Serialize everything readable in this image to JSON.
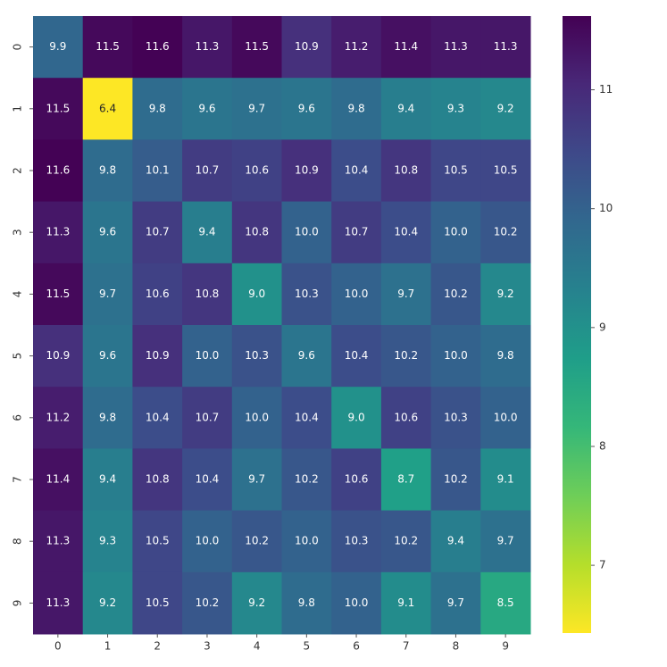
{
  "chart_data": {
    "type": "heatmap",
    "x_categories": [
      "0",
      "1",
      "2",
      "3",
      "4",
      "5",
      "6",
      "7",
      "8",
      "9"
    ],
    "y_categories": [
      "0",
      "1",
      "2",
      "3",
      "4",
      "5",
      "6",
      "7",
      "8",
      "9"
    ],
    "values": [
      [
        9.9,
        11.5,
        11.6,
        11.3,
        11.5,
        10.9,
        11.2,
        11.4,
        11.3,
        11.3
      ],
      [
        11.5,
        6.4,
        9.8,
        9.6,
        9.7,
        9.6,
        9.8,
        9.4,
        9.3,
        9.2
      ],
      [
        11.6,
        9.8,
        10.1,
        10.7,
        10.6,
        10.9,
        10.4,
        10.8,
        10.5,
        10.5
      ],
      [
        11.3,
        9.6,
        10.7,
        9.4,
        10.8,
        10.0,
        10.7,
        10.4,
        10.0,
        10.2
      ],
      [
        11.5,
        9.7,
        10.6,
        10.8,
        9.0,
        10.3,
        10.0,
        9.7,
        10.2,
        9.2
      ],
      [
        10.9,
        9.6,
        10.9,
        10.0,
        10.3,
        9.6,
        10.4,
        10.2,
        10.0,
        9.8
      ],
      [
        11.2,
        9.8,
        10.4,
        10.7,
        10.0,
        10.4,
        9.0,
        10.6,
        10.3,
        10.0
      ],
      [
        11.4,
        9.4,
        10.8,
        10.4,
        9.7,
        10.2,
        10.6,
        8.7,
        10.2,
        9.1
      ],
      [
        11.3,
        9.3,
        10.5,
        10.0,
        10.2,
        10.0,
        10.3,
        10.2,
        9.4,
        9.7
      ],
      [
        11.3,
        9.2,
        10.5,
        10.2,
        9.2,
        9.8,
        10.0,
        9.1,
        9.7,
        8.5
      ]
    ],
    "value_labels": [
      [
        "9.9",
        "11.5",
        "11.6",
        "11.3",
        "11.5",
        "10.9",
        "11.2",
        "11.4",
        "11.3",
        "11.3"
      ],
      [
        "11.5",
        "6.4",
        "9.8",
        "9.6",
        "9.7",
        "9.6",
        "9.8",
        "9.4",
        "9.3",
        "9.2"
      ],
      [
        "11.6",
        "9.8",
        "10.1",
        "10.7",
        "10.6",
        "10.9",
        "10.4",
        "10.8",
        "10.5",
        "10.5"
      ],
      [
        "11.3",
        "9.6",
        "10.7",
        "9.4",
        "10.8",
        "10.0",
        "10.7",
        "10.4",
        "10.0",
        "10.2"
      ],
      [
        "11.5",
        "9.7",
        "10.6",
        "10.8",
        "9.0",
        "10.3",
        "10.0",
        "9.7",
        "10.2",
        "9.2"
      ],
      [
        "10.9",
        "9.6",
        "10.9",
        "10.0",
        "10.3",
        "9.6",
        "10.4",
        "10.2",
        "10.0",
        "9.8"
      ],
      [
        "11.2",
        "9.8",
        "10.4",
        "10.7",
        "10.0",
        "10.4",
        "9.0",
        "10.6",
        "10.3",
        "10.0"
      ],
      [
        "11.4",
        "9.4",
        "10.8",
        "10.4",
        "9.7",
        "10.2",
        "10.6",
        "8.7",
        "10.2",
        "9.1"
      ],
      [
        "11.3",
        "9.3",
        "10.5",
        "10.0",
        "10.2",
        "10.0",
        "10.3",
        "10.2",
        "9.4",
        "9.7"
      ],
      [
        "11.3",
        "9.2",
        "10.5",
        "10.2",
        "9.2",
        "9.8",
        "10.0",
        "9.1",
        "9.7",
        "8.5"
      ]
    ],
    "colormap": [
      "#fde725",
      "#b5de2b",
      "#6ece58",
      "#35b779",
      "#1f9e89",
      "#26828e",
      "#31688e",
      "#3e4989",
      "#482878",
      "#440154"
    ],
    "zlim": [
      6.43,
      11.62
    ],
    "zticks": [
      7,
      8,
      9,
      10,
      11
    ]
  }
}
